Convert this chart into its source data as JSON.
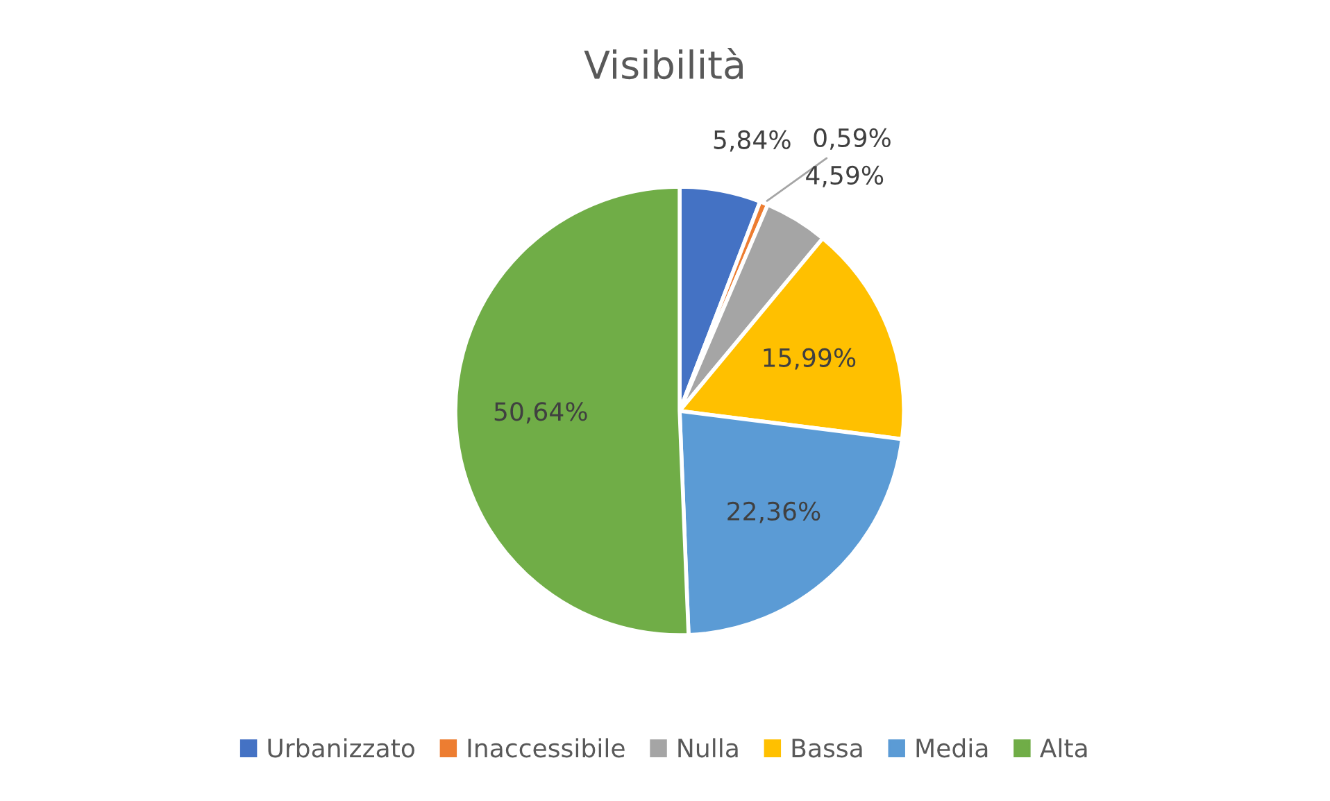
{
  "chart_data": {
    "type": "pie",
    "title": "Visibilità",
    "categories": [
      "Urbanizzato",
      "Inaccessibile",
      "Nulla",
      "Bassa",
      "Media",
      "Alta"
    ],
    "values": [
      5.84,
      0.59,
      4.59,
      15.99,
      22.36,
      50.64
    ],
    "value_labels": [
      "5,84%",
      "0,59%",
      "4,59%",
      "15,99%",
      "22,36%",
      "50,64%"
    ],
    "colors": [
      "#4472c4",
      "#ed7d31",
      "#a5a5a5",
      "#ffc000",
      "#5b9bd5",
      "#70ad47"
    ],
    "legend": "bottom"
  }
}
